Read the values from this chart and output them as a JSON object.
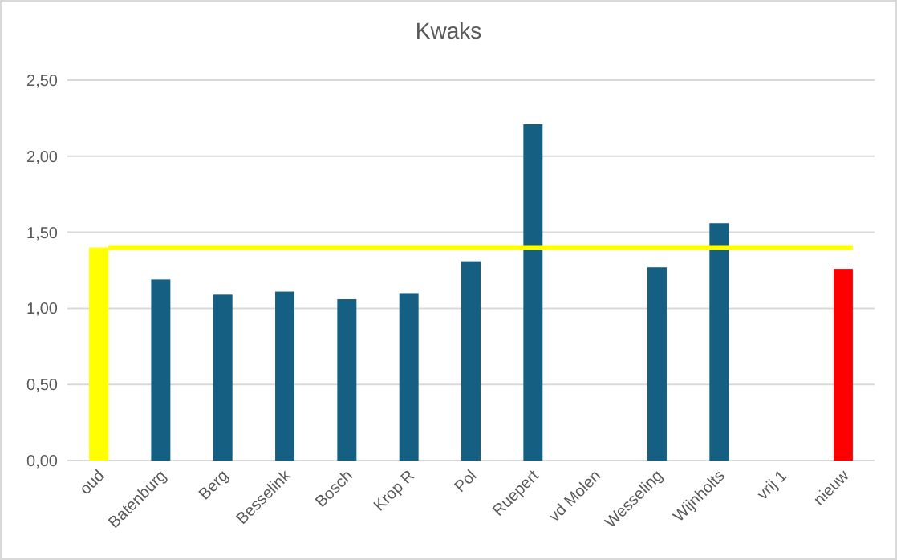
{
  "chart_data": {
    "type": "bar",
    "title": "Kwaks",
    "categories": [
      "oud",
      "Batenburg",
      "Berg",
      "Besselink",
      "Bosch",
      "Krop R",
      "Pol",
      "Ruepert",
      "vd Molen",
      "Wesseling",
      "Wijnholts",
      "vrij 1",
      "nieuw"
    ],
    "values": [
      1.4,
      1.19,
      1.09,
      1.11,
      1.06,
      1.1,
      1.31,
      2.21,
      null,
      1.27,
      1.56,
      null,
      1.26
    ],
    "colors": [
      "#ffff00",
      "#156082",
      "#156082",
      "#156082",
      "#156082",
      "#156082",
      "#156082",
      "#156082",
      null,
      "#156082",
      "#156082",
      null,
      "#ff0000"
    ],
    "ylim": [
      0,
      2.5
    ],
    "yticks": [
      {
        "value": 0,
        "label": "0,00"
      },
      {
        "value": 0.5,
        "label": "0,50"
      },
      {
        "value": 1,
        "label": "1,00"
      },
      {
        "value": 1.5,
        "label": "1,50"
      },
      {
        "value": 2,
        "label": "2,00"
      },
      {
        "value": 2.5,
        "label": "2,50"
      }
    ],
    "grid": "y",
    "ref_lines": [
      {
        "axis": "y",
        "value": 1.4,
        "color": "#ffff00"
      }
    ]
  }
}
